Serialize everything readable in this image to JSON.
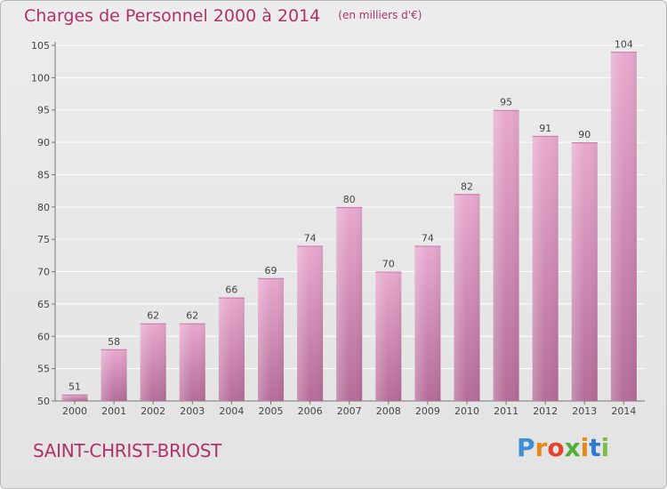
{
  "header": {
    "title": "Charges de Personnel 2000 à 2014",
    "unit_note": "(en milliers d'€)"
  },
  "footer": {
    "commune": "SAINT-CHRIST-BRIOST",
    "logo_text": "Proxiti"
  },
  "colors": {
    "accent": "#b0306a",
    "bar_top": "#e8a9cf",
    "bar_bottom": "#b56c98",
    "grid": "#ffffff"
  },
  "chart_data": {
    "type": "bar",
    "title": "Charges de Personnel 2000 à 2014",
    "subtitle": "(en milliers d'€)",
    "categories": [
      "2000",
      "2001",
      "2002",
      "2003",
      "2004",
      "2005",
      "2006",
      "2007",
      "2008",
      "2009",
      "2010",
      "2011",
      "2012",
      "2013",
      "2014"
    ],
    "values": [
      51,
      58,
      62,
      62,
      66,
      69,
      74,
      80,
      70,
      74,
      82,
      95,
      91,
      90,
      104
    ],
    "ylim": [
      50,
      105
    ],
    "yticks": [
      50,
      55,
      60,
      65,
      70,
      75,
      80,
      85,
      90,
      95,
      100,
      105
    ],
    "grid": true,
    "data_labels": true
  }
}
